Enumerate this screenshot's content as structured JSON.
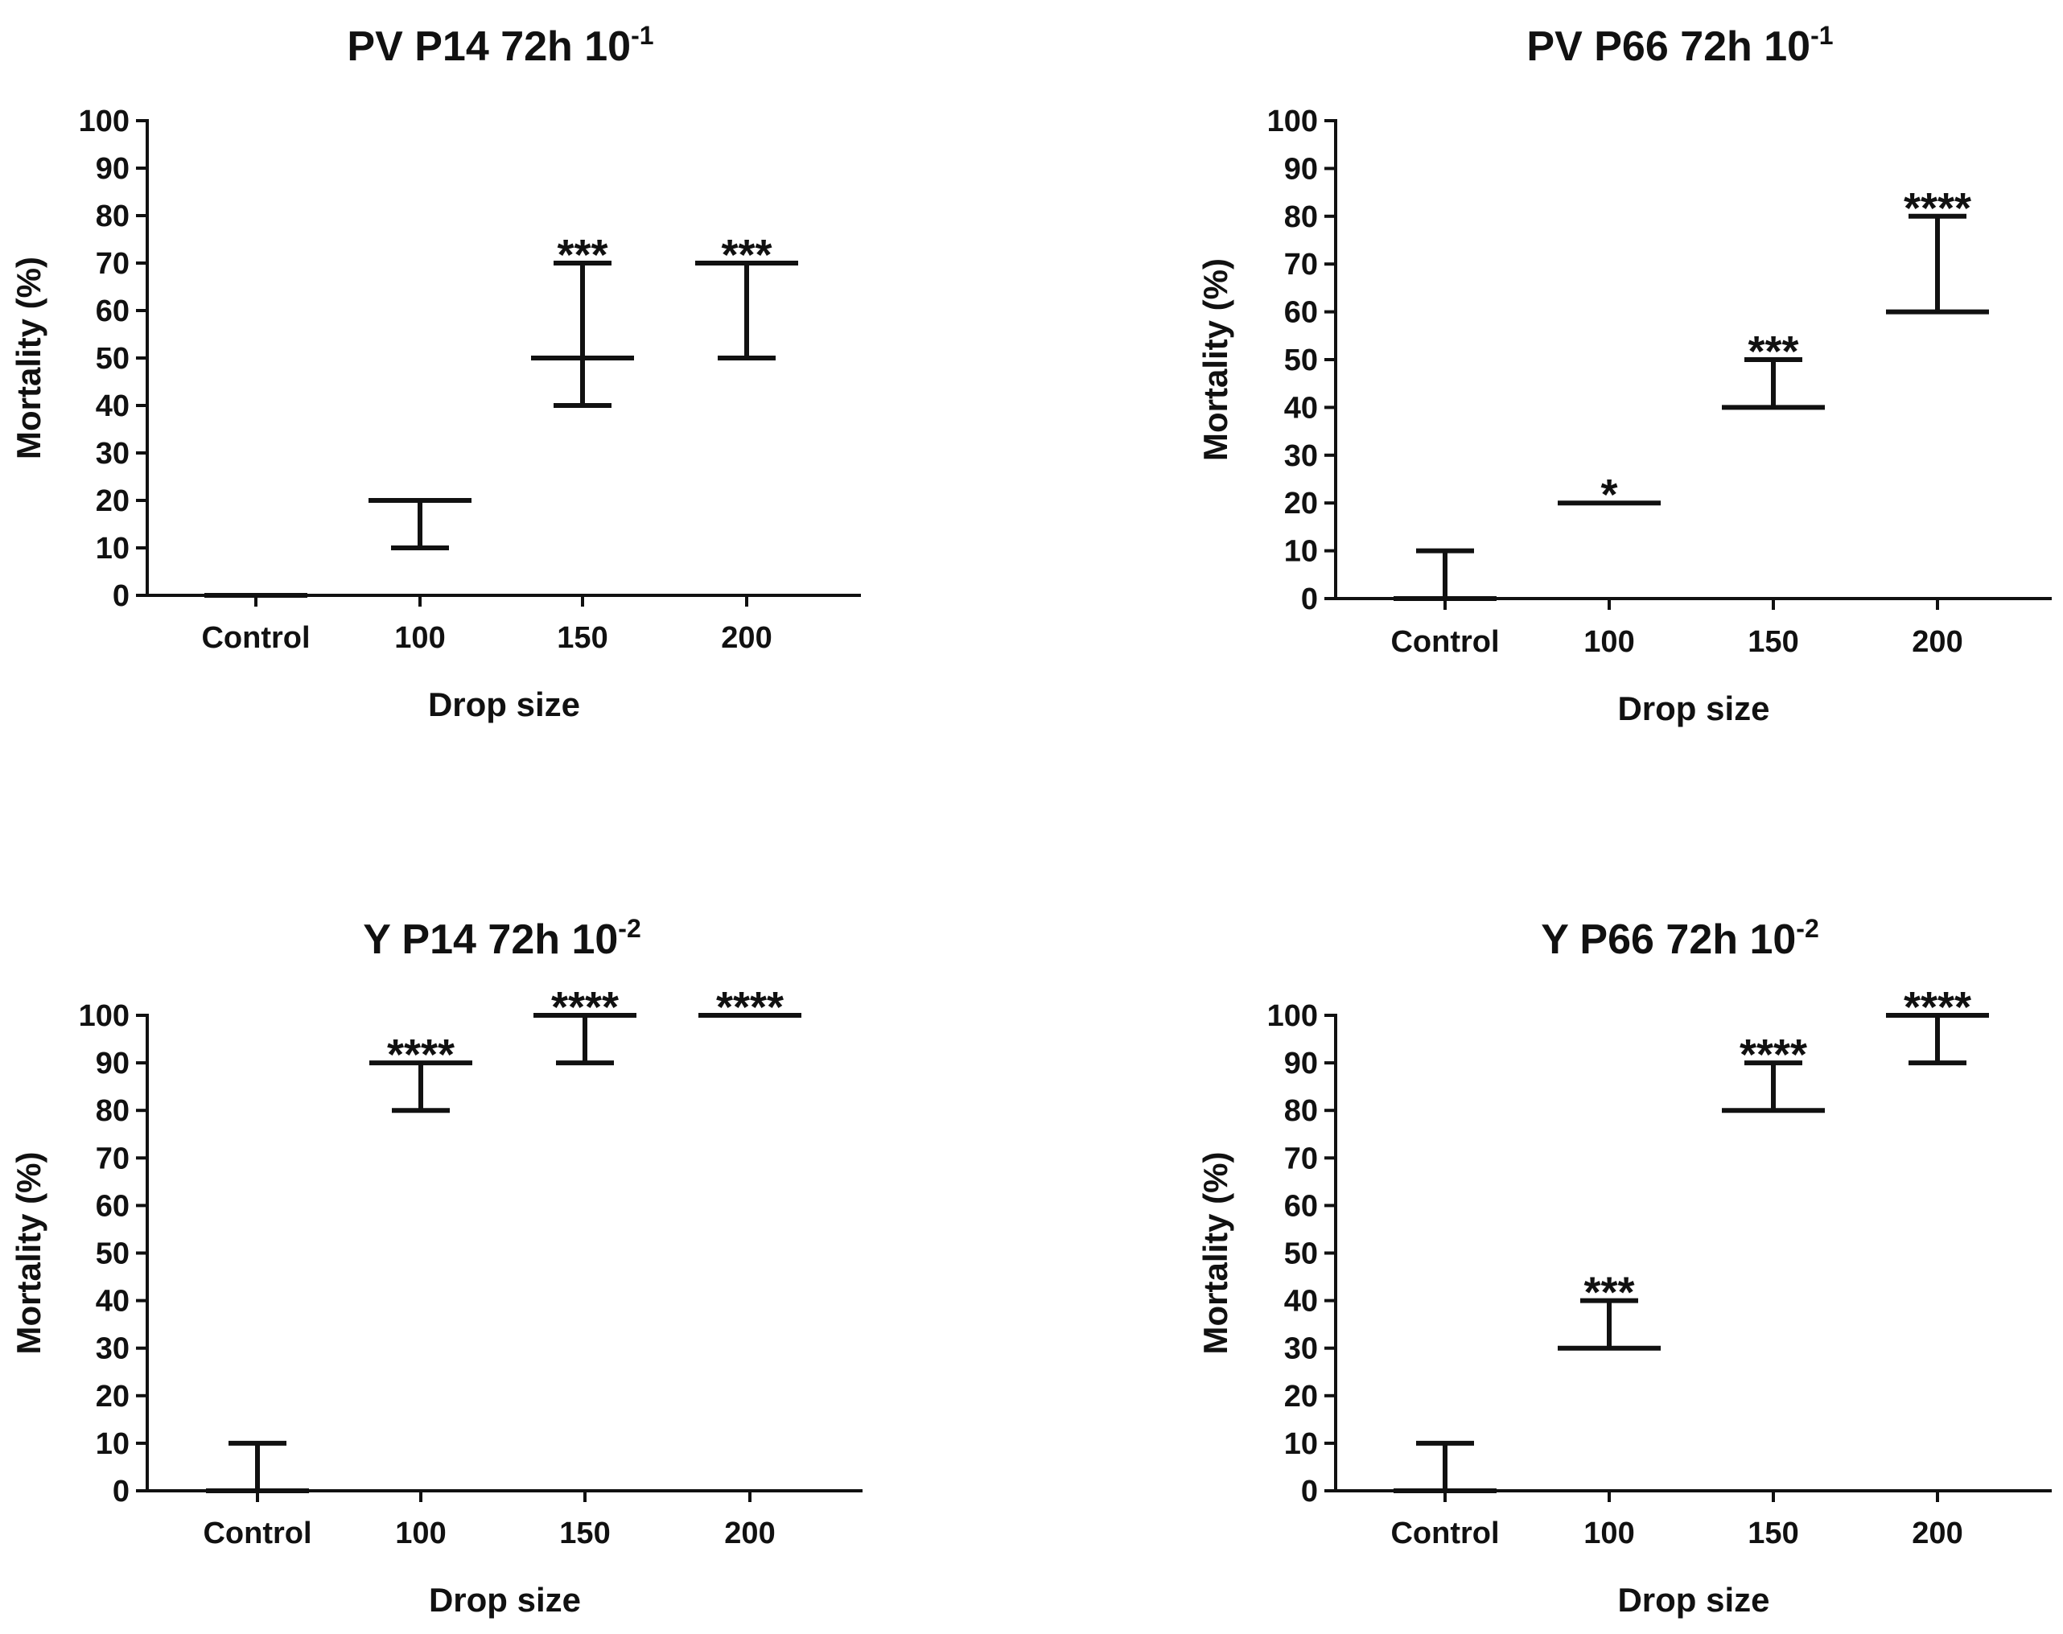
{
  "chart_data": [
    {
      "type": "errorbar",
      "title": "PV P14 72h 10",
      "title_exponent": "-1",
      "xlabel": "Drop size",
      "ylabel": "Mortality (%)",
      "ylim": [
        0,
        100
      ],
      "yticks": [
        "0",
        "10",
        "20",
        "30",
        "40",
        "50",
        "60",
        "70",
        "80",
        "90",
        "100"
      ],
      "categories": [
        "Control",
        "100",
        "150",
        "200"
      ],
      "mean": [
        0,
        20,
        50,
        70
      ],
      "lower": [
        0,
        10,
        40,
        50
      ],
      "upper": [
        0,
        20,
        70,
        70
      ],
      "significance": [
        "",
        "",
        "***",
        "***"
      ]
    },
    {
      "type": "errorbar",
      "title": "PV P66 72h 10",
      "title_exponent": "-1",
      "xlabel": "Drop size",
      "ylabel": "Mortality (%)",
      "ylim": [
        0,
        100
      ],
      "yticks": [
        "0",
        "10",
        "20",
        "30",
        "40",
        "50",
        "60",
        "70",
        "80",
        "90",
        "100"
      ],
      "categories": [
        "Control",
        "100",
        "150",
        "200"
      ],
      "mean": [
        0,
        20,
        40,
        60
      ],
      "lower": [
        0,
        20,
        40,
        60
      ],
      "upper": [
        10,
        20,
        50,
        80
      ],
      "significance": [
        "",
        "*",
        "***",
        "****"
      ]
    },
    {
      "type": "errorbar",
      "title": "Y P14 72h 10",
      "title_exponent": "-2",
      "xlabel": "Drop size",
      "ylabel": "Mortality (%)",
      "ylim": [
        0,
        100
      ],
      "yticks": [
        "0",
        "10",
        "20",
        "30",
        "40",
        "50",
        "60",
        "70",
        "80",
        "90",
        "100"
      ],
      "categories": [
        "Control",
        "100",
        "150",
        "200"
      ],
      "mean": [
        0,
        90,
        100,
        100
      ],
      "lower": [
        0,
        80,
        90,
        100
      ],
      "upper": [
        10,
        90,
        100,
        100
      ],
      "significance": [
        "",
        "****",
        "****",
        "****"
      ]
    },
    {
      "type": "errorbar",
      "title": "Y P66 72h 10",
      "title_exponent": "-2",
      "xlabel": "Drop size",
      "ylabel": "Mortality (%)",
      "ylim": [
        0,
        100
      ],
      "yticks": [
        "0",
        "10",
        "20",
        "30",
        "40",
        "50",
        "60",
        "70",
        "80",
        "90",
        "100"
      ],
      "categories": [
        "Control",
        "100",
        "150",
        "200"
      ],
      "mean": [
        0,
        30,
        80,
        100
      ],
      "lower": [
        0,
        30,
        80,
        90
      ],
      "upper": [
        10,
        40,
        90,
        100
      ],
      "significance": [
        "",
        "***",
        "****",
        "****"
      ]
    }
  ]
}
